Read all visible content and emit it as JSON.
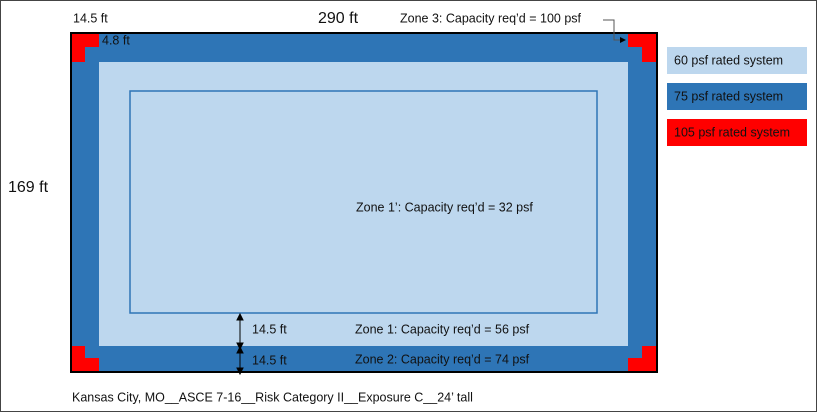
{
  "dimensions": {
    "corner_top": "14.5 ft",
    "width": "290 ft",
    "height": "169 ft",
    "corner_inner": "4.8 ft",
    "zone1_depth": "14.5 ft",
    "zone2_depth": "14.5 ft"
  },
  "zones": {
    "zone3": "Zone 3: Capacity req’d = 100 psf",
    "zone1_prime": "Zone 1’: Capacity req’d = 32 psf",
    "zone1": "Zone 1: Capacity req’d = 56 psf",
    "zone2": "Zone 2: Capacity req’d = 74 psf"
  },
  "legend": [
    "60 psf rated system",
    "75 psf rated system",
    "105 psf rated system"
  ],
  "caption": "Kansas City, MO__ASCE 7-16__Risk Category II__Exposure C__24’ tall"
}
